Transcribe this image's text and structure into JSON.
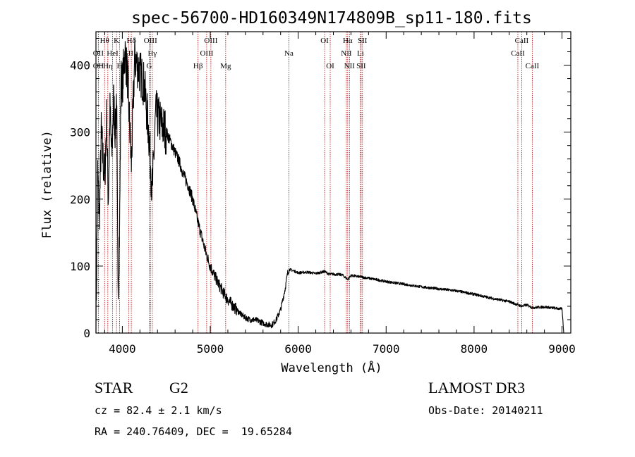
{
  "chart_data": {
    "type": "line",
    "title": "spec-56700-HD160349N174809B_sp11-180.fits",
    "xlabel": "Wavelength (Å)",
    "ylabel": "Flux (relative)",
    "xlim": [
      3700,
      9100
    ],
    "ylim": [
      0,
      450
    ],
    "xticks": [
      4000,
      5000,
      6000,
      7000,
      8000,
      9000
    ],
    "xtick_labels": [
      "4000",
      "5000",
      "6000",
      "7000",
      "8000",
      "9000"
    ],
    "yticks": [
      0,
      100,
      200,
      300,
      400
    ],
    "ytick_labels": [
      "0",
      "100",
      "200",
      "300",
      "400"
    ],
    "grid": false,
    "series": [
      {
        "name": "flux",
        "x": [
          3700,
          3720,
          3740,
          3760,
          3780,
          3800,
          3820,
          3840,
          3860,
          3880,
          3900,
          3920,
          3935,
          3950,
          3968,
          3985,
          4000,
          4030,
          4060,
          4102,
          4140,
          4200,
          4250,
          4300,
          4340,
          4380,
          4450,
          4500,
          4550,
          4600,
          4650,
          4700,
          4750,
          4800,
          4861,
          4900,
          4950,
          5000,
          5050,
          5100,
          5150,
          5200,
          5250,
          5300,
          5350,
          5400,
          5450,
          5500,
          5550,
          5600,
          5650,
          5700,
          5750,
          5800,
          5850,
          5880,
          5900,
          5950,
          6000,
          6100,
          6200,
          6300,
          6350,
          6400,
          6500,
          6563,
          6600,
          6700,
          6800,
          7000,
          7200,
          7400,
          7600,
          7800,
          8000,
          8200,
          8400,
          8542,
          8600,
          8662,
          8800,
          9000,
          9020
        ],
        "y": [
          5,
          240,
          170,
          300,
          260,
          230,
          320,
          200,
          330,
          260,
          350,
          300,
          360,
          60,
          150,
          380,
          370,
          420,
          380,
          250,
          410,
          390,
          370,
          300,
          210,
          330,
          310,
          300,
          285,
          270,
          255,
          235,
          220,
          200,
          165,
          145,
          120,
          100,
          85,
          72,
          60,
          50,
          42,
          35,
          28,
          23,
          20,
          20,
          18,
          15,
          13,
          12,
          20,
          35,
          65,
          90,
          95,
          93,
          90,
          91,
          89,
          92,
          88,
          88,
          87,
          80,
          86,
          84,
          82,
          77,
          73,
          69,
          66,
          63,
          58,
          52,
          47,
          40,
          42,
          38,
          39,
          36,
          0
        ]
      }
    ],
    "lines": [
      {
        "label": "OII",
        "x": 3727,
        "row": 2
      },
      {
        "label": "OII",
        "x": 3727,
        "row": 1
      },
      {
        "label": "Hθ",
        "x": 3798,
        "row": 0
      },
      {
        "label": "Hη",
        "x": 3835,
        "row": 2
      },
      {
        "label": "HeI",
        "x": 3889,
        "row": 1
      },
      {
        "label": "K",
        "x": 3934,
        "row": 0
      },
      {
        "label": "H",
        "x": 3969,
        "row": 2
      },
      {
        "label": "SII",
        "x": 4072,
        "row": 1
      },
      {
        "label": "Hδ",
        "x": 4102,
        "row": 0
      },
      {
        "label": "G",
        "x": 4305,
        "row": 2
      },
      {
        "label": "OIII",
        "x": 4320,
        "row": 0
      },
      {
        "label": "Hγ",
        "x": 4341,
        "row": 1
      },
      {
        "label": "Hβ",
        "x": 4861,
        "row": 2
      },
      {
        "label": "OIII",
        "x": 4959,
        "row": 1
      },
      {
        "label": "OIII",
        "x": 5007,
        "row": 0
      },
      {
        "label": "Mg",
        "x": 5175,
        "row": 2
      },
      {
        "label": "Na",
        "x": 5894,
        "row": 1
      },
      {
        "label": "OI",
        "x": 6300,
        "row": 0
      },
      {
        "label": "OI",
        "x": 6364,
        "row": 2
      },
      {
        "label": "NII",
        "x": 6548,
        "row": 1
      },
      {
        "label": "Hα",
        "x": 6563,
        "row": 0
      },
      {
        "label": "NII",
        "x": 6583,
        "row": 2
      },
      {
        "label": "Li",
        "x": 6708,
        "row": 1
      },
      {
        "label": "SII",
        "x": 6716,
        "row": 2
      },
      {
        "label": "SII",
        "x": 6731,
        "row": 0
      },
      {
        "label": "CaII",
        "x": 8498,
        "row": 1
      },
      {
        "label": "CaII",
        "x": 8542,
        "row": 0
      },
      {
        "label": "CaII",
        "x": 8662,
        "row": 2
      }
    ]
  },
  "footer": {
    "class_label": "STAR",
    "subclass": "G2",
    "survey": "LAMOST DR3",
    "cz": "cz = 82.4 ± 2.1 km/s",
    "obs_date": "Obs-Date: 20140211",
    "coords": "RA = 240.76409, DEC =  19.65284"
  }
}
